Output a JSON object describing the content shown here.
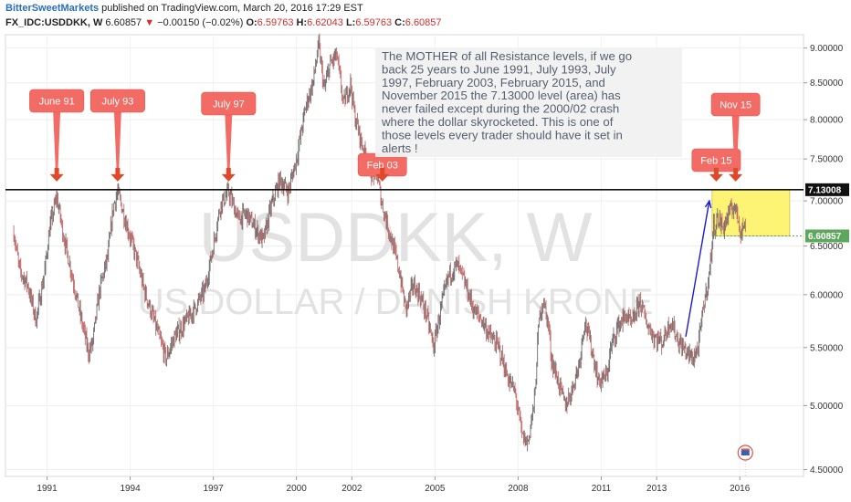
{
  "header": {
    "author": "BitterSweetMarkets",
    "published": "published on TradingView.com, March 20, 2016 17:29 EST",
    "symbol": "FX_IDC:USDDKK, W",
    "last": "6.60857",
    "change": "−0.00150 (−0.02%)",
    "o_label": "O:",
    "o_value": "6.59763",
    "h_label": "H:",
    "h_value": "6.62043",
    "l_label": "L:",
    "l_value": "6.59763",
    "c_label": "C:",
    "c_value": "6.60857"
  },
  "chart_data": {
    "type": "line",
    "title": "",
    "watermark": [
      "USDDKK, W",
      "US DOLLAR / DANISH KRONE"
    ],
    "y_scale": "log",
    "ylim": [
      4.45,
      9.2
    ],
    "xlim": [
      1989.5,
      2018.3
    ],
    "y_ticks": [
      "4.50000",
      "5.00000",
      "5.50000",
      "6.00000",
      "6.50000",
      "7.00000",
      "7.50000",
      "8.00000",
      "8.50000",
      "9.00000"
    ],
    "x_ticks": [
      "1991",
      "1994",
      "1997",
      "2000",
      "2002",
      "2005",
      "2008",
      "2011",
      "2013",
      "2016"
    ],
    "x_tick_years": [
      1991,
      1994,
      1997,
      2000,
      2002,
      2005,
      2008,
      2011,
      2013,
      2016
    ],
    "series": [
      {
        "x": [
          1989.8,
          1990.0,
          1990.3,
          1990.6,
          1990.9,
          1991.1,
          1991.35,
          1991.6,
          1991.9,
          1992.2,
          1992.5,
          1992.65,
          1992.9,
          1993.2,
          1993.4,
          1993.55,
          1993.9,
          1994.2,
          1994.5,
          1994.8,
          1995.1,
          1995.3,
          1995.6,
          1995.9,
          1996.3,
          1996.7,
          1997.0,
          1997.25,
          1997.55,
          1997.9,
          1998.2,
          1998.5,
          1998.8,
          1999.1,
          1999.4,
          1999.7,
          2000.0,
          2000.35,
          2000.6,
          2000.8,
          2001.0,
          2001.2,
          2001.45,
          2001.7,
          2001.95,
          2002.1,
          2002.35,
          2002.65,
          2002.9,
          2003.1,
          2003.4,
          2003.7,
          2003.95,
          2004.2,
          2004.45,
          2004.7,
          2004.95,
          2005.2,
          2005.5,
          2005.8,
          2006.1,
          2006.4,
          2006.7,
          2007.0,
          2007.3,
          2007.6,
          2007.9,
          2008.15,
          2008.35,
          2008.6,
          2008.75,
          2008.9,
          2009.1,
          2009.2,
          2009.45,
          2009.7,
          2009.9,
          2010.2,
          2010.4,
          2010.6,
          2010.9,
          2011.2,
          2011.35,
          2011.6,
          2011.9,
          2012.1,
          2012.4,
          2012.6,
          2012.9,
          2013.2,
          2013.5,
          2013.8,
          2014.1,
          2014.3,
          2014.5,
          2014.7,
          2014.9,
          2015.05,
          2015.2,
          2015.4,
          2015.6,
          2015.8,
          2015.9,
          2016.05,
          2016.15,
          2016.22
        ],
        "y": [
          6.65,
          6.25,
          6.1,
          5.75,
          6.2,
          6.7,
          7.05,
          6.6,
          6.2,
          5.8,
          5.45,
          5.55,
          6.05,
          6.4,
          6.95,
          7.1,
          6.7,
          6.4,
          6.05,
          5.8,
          5.55,
          5.4,
          5.6,
          5.7,
          5.85,
          6.05,
          6.5,
          6.95,
          7.1,
          6.8,
          6.85,
          6.7,
          6.55,
          6.95,
          7.25,
          7.1,
          7.5,
          8.2,
          8.5,
          9.05,
          8.4,
          8.75,
          8.9,
          8.2,
          8.5,
          8.05,
          7.7,
          7.35,
          7.3,
          6.95,
          6.6,
          6.25,
          5.85,
          6.1,
          6.0,
          5.8,
          5.5,
          5.85,
          6.2,
          6.3,
          6.1,
          5.85,
          5.75,
          5.6,
          5.5,
          5.25,
          5.1,
          4.75,
          4.7,
          5.05,
          5.75,
          5.95,
          5.7,
          5.4,
          5.2,
          5.0,
          5.1,
          5.35,
          5.75,
          5.55,
          5.2,
          5.25,
          5.5,
          5.7,
          5.8,
          5.7,
          5.95,
          5.75,
          5.6,
          5.55,
          5.75,
          5.55,
          5.45,
          5.4,
          5.5,
          5.9,
          6.2,
          6.7,
          6.8,
          6.7,
          6.85,
          6.95,
          6.85,
          6.65,
          6.75,
          6.61
        ]
      }
    ],
    "resistance_level": 7.13008,
    "resistance_label": "7.13008",
    "last_price": 6.60857,
    "last_price_label": "6.60857",
    "annotations": [
      {
        "label": "June 91",
        "year": 1991.35
      },
      {
        "label": "July 93",
        "year": 1993.55
      },
      {
        "label": "July 97",
        "year": 1997.55
      },
      {
        "label": "Feb 03",
        "year": 2003.1
      },
      {
        "label": "Feb 15",
        "year": 2015.15
      },
      {
        "label": "Nov 15",
        "year": 2015.85
      }
    ],
    "note": [
      "The MOTHER of all Resistance levels, if we go",
      "back 25 years to June 1991, July 1993, July",
      "1997, February 2003, February 2015, and",
      "November 2015 the 7.13000 level (area) has",
      "never failed except during the 2000/02 crash",
      "where the dollar skyrocketed. This is one of",
      "those levels every trader should have it set in",
      "alerts !"
    ],
    "zone": {
      "x0": 2015.0,
      "x1": 2017.8,
      "y0": 6.61,
      "y1": 7.13,
      "color": "#fdf46e"
    },
    "trend_arrow": {
      "x0": 2014.05,
      "y0": 5.6,
      "x1": 2014.9,
      "y1": 7.0,
      "color": "#1a1acc"
    },
    "colors": {
      "up": "#6d6d6d",
      "down": "#c06a6a",
      "callout": "#f26b64",
      "arrow": "#e0482a"
    }
  }
}
